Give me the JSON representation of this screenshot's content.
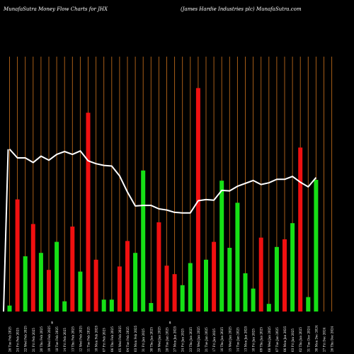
{
  "header": {
    "left": "MunafaSutra  Money Flow  Charts for JHX",
    "right": "(James Hardie   Industries plc) MunafaSutra.com"
  },
  "colors": {
    "background": "#000000",
    "gridline": "#b8671a",
    "up_bar": "#16e016",
    "down_bar": "#f01010",
    "line": "#ffffff",
    "label": "#ffffff"
  },
  "chart_data": {
    "type": "bar",
    "title": "",
    "xlabel": "",
    "ylabel": "",
    "grid": true,
    "categories": [
      "26 Tue Feb 2025",
      "24 Fri Feb 2025",
      "22 Wed Feb 2025",
      "21 Fri Feb 2025",
      "20 Thu Feb 2025",
      "19 Wed Feb 2025",
      "18 Tue Feb 2025",
      "14 Fri Feb 2025",
      "13 Thu Feb 2025",
      "12 Wed Feb 2025",
      "11 Tue Feb 2025",
      "10 Mon Feb 2025",
      "07 Fri Feb 2025",
      "06 Thu Feb 2025",
      "05 Wed Feb 2025",
      "04 Tue Feb 2025",
      "03 Mon Feb 2025",
      "31 Fri Jan 2025",
      "30 Thu Jan 2025",
      "29 Wed Jan 2025",
      "28 Tue Jan 2025",
      "27 Mon Jan 2025",
      "24 Fri Jan 2025",
      "23 Thu Jan 2025",
      "22 Wed Jan 2025",
      "21 Tue Jan 2025",
      "17 Fri Jan 2025",
      "16 Thu Jan 2025",
      "15 Wed Jan 2025",
      "14 Tue Jan 2025",
      "13 Mon Jan 2025",
      "10 Fri Jan 2025",
      "09 Thu Jan 2025",
      "08 Wed Jan 2025",
      "07 Tue Jan 2025",
      "06 Mon Jan 2025",
      "03 Fri Jan 2025",
      "02 Thu Jan 2025",
      "31 Tue Dec 2024",
      "30 Mon Dec 2024",
      "27 Fri Dec 2024",
      "26 Thu Dec 2024"
    ],
    "bars": [
      {
        "value": 7,
        "color": "green"
      },
      {
        "value": 132,
        "color": "red"
      },
      {
        "value": 65,
        "color": "green"
      },
      {
        "value": 103,
        "color": "red"
      },
      {
        "value": 69,
        "color": "green"
      },
      {
        "value": 49,
        "color": "red"
      },
      {
        "value": 82,
        "color": "green"
      },
      {
        "value": 12,
        "color": "green"
      },
      {
        "value": 100,
        "color": "red"
      },
      {
        "value": 47,
        "color": "green"
      },
      {
        "value": 234,
        "color": "red"
      },
      {
        "value": 61,
        "color": "red"
      },
      {
        "value": 14,
        "color": "green"
      },
      {
        "value": 14,
        "color": "green"
      },
      {
        "value": 53,
        "color": "red"
      },
      {
        "value": 83,
        "color": "red"
      },
      {
        "value": 69,
        "color": "green"
      },
      {
        "value": 166,
        "color": "green"
      },
      {
        "value": 10,
        "color": "green"
      },
      {
        "value": 105,
        "color": "red"
      },
      {
        "value": 54,
        "color": "red"
      },
      {
        "value": 44,
        "color": "red"
      },
      {
        "value": 31,
        "color": "green"
      },
      {
        "value": 57,
        "color": "green"
      },
      {
        "value": 263,
        "color": "red"
      },
      {
        "value": 61,
        "color": "green"
      },
      {
        "value": 82,
        "color": "red"
      },
      {
        "value": 154,
        "color": "green"
      },
      {
        "value": 75,
        "color": "green"
      },
      {
        "value": 128,
        "color": "green"
      },
      {
        "value": 45,
        "color": "green"
      },
      {
        "value": 27,
        "color": "green"
      },
      {
        "value": 87,
        "color": "red"
      },
      {
        "value": 9,
        "color": "green"
      },
      {
        "value": 76,
        "color": "green"
      },
      {
        "value": 85,
        "color": "red"
      },
      {
        "value": 104,
        "color": "green"
      },
      {
        "value": 193,
        "color": "red"
      },
      {
        "value": 17,
        "color": "green"
      },
      {
        "value": 155,
        "color": "green"
      },
      {
        "value": 0,
        "color": "none"
      },
      {
        "value": 0,
        "color": "none"
      }
    ],
    "line": [
      142,
      157,
      157,
      165,
      154,
      161,
      151,
      146,
      151,
      145,
      162,
      167,
      170,
      171,
      188,
      216,
      240,
      239,
      239,
      245,
      247,
      251,
      252,
      252,
      231,
      229,
      230,
      213,
      214,
      206,
      201,
      196,
      203,
      200,
      194,
      194,
      189,
      199,
      207,
      191,
      null,
      null
    ],
    "ylim_bars": [
      0,
      300
    ],
    "ylim_line": [
      0,
      440
    ],
    "mid_markers": [
      {
        "index": 5,
        "text": "$"
      },
      {
        "index": 20,
        "text": "$"
      }
    ]
  }
}
